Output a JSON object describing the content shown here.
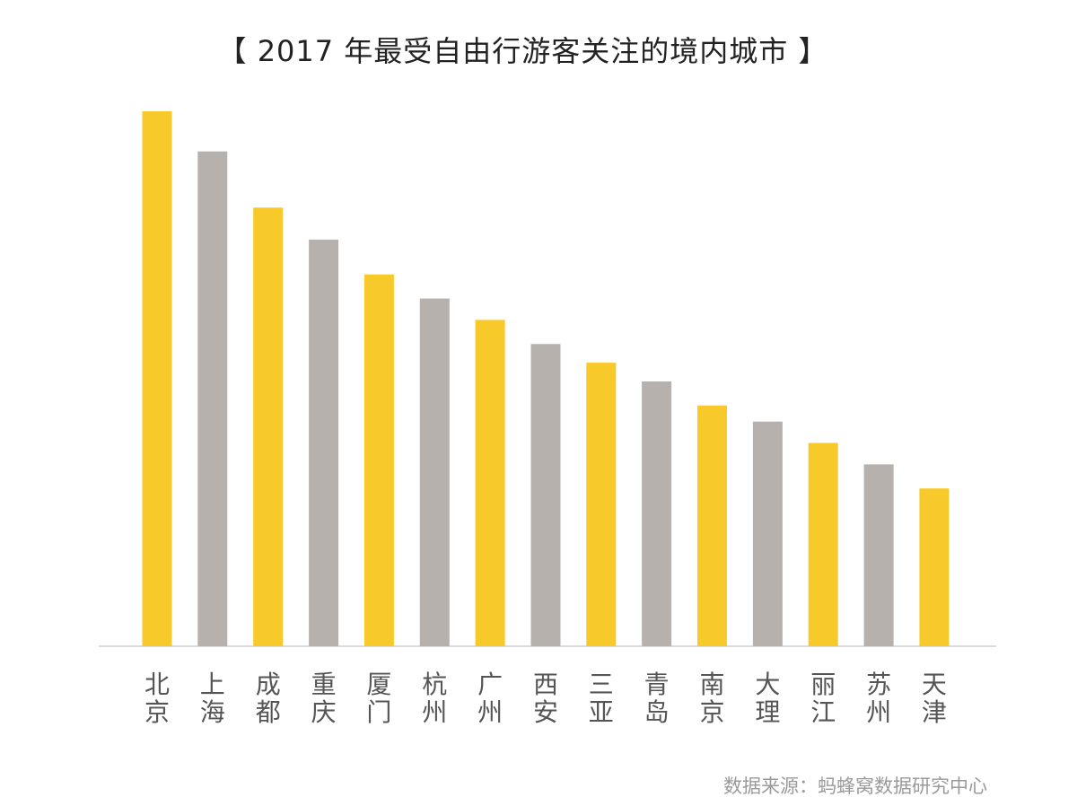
{
  "chart_data": {
    "type": "bar",
    "title": "【 2017 年最受自由行游客关注的境内城市 】",
    "categories": [
      "北京",
      "上海",
      "成都",
      "重庆",
      "厦门",
      "杭州",
      "广州",
      "西安",
      "三亚",
      "青岛",
      "南京",
      "大理",
      "丽江",
      "苏州",
      "天津"
    ],
    "values": [
      100,
      92.5,
      82,
      76,
      69.5,
      65,
      61,
      56.5,
      53,
      49.5,
      45,
      42,
      38,
      34,
      29.5
    ],
    "ylim": [
      0,
      100
    ],
    "xlabel": "",
    "ylabel": "",
    "grid": false,
    "legend": "none",
    "colors": {
      "highlight": "#F8C92A",
      "alternate": "#B7B1AE",
      "axis": "#cfcfcf",
      "label": "#555555"
    }
  },
  "source": "数据来源：蚂蜂窝数据研究中心"
}
